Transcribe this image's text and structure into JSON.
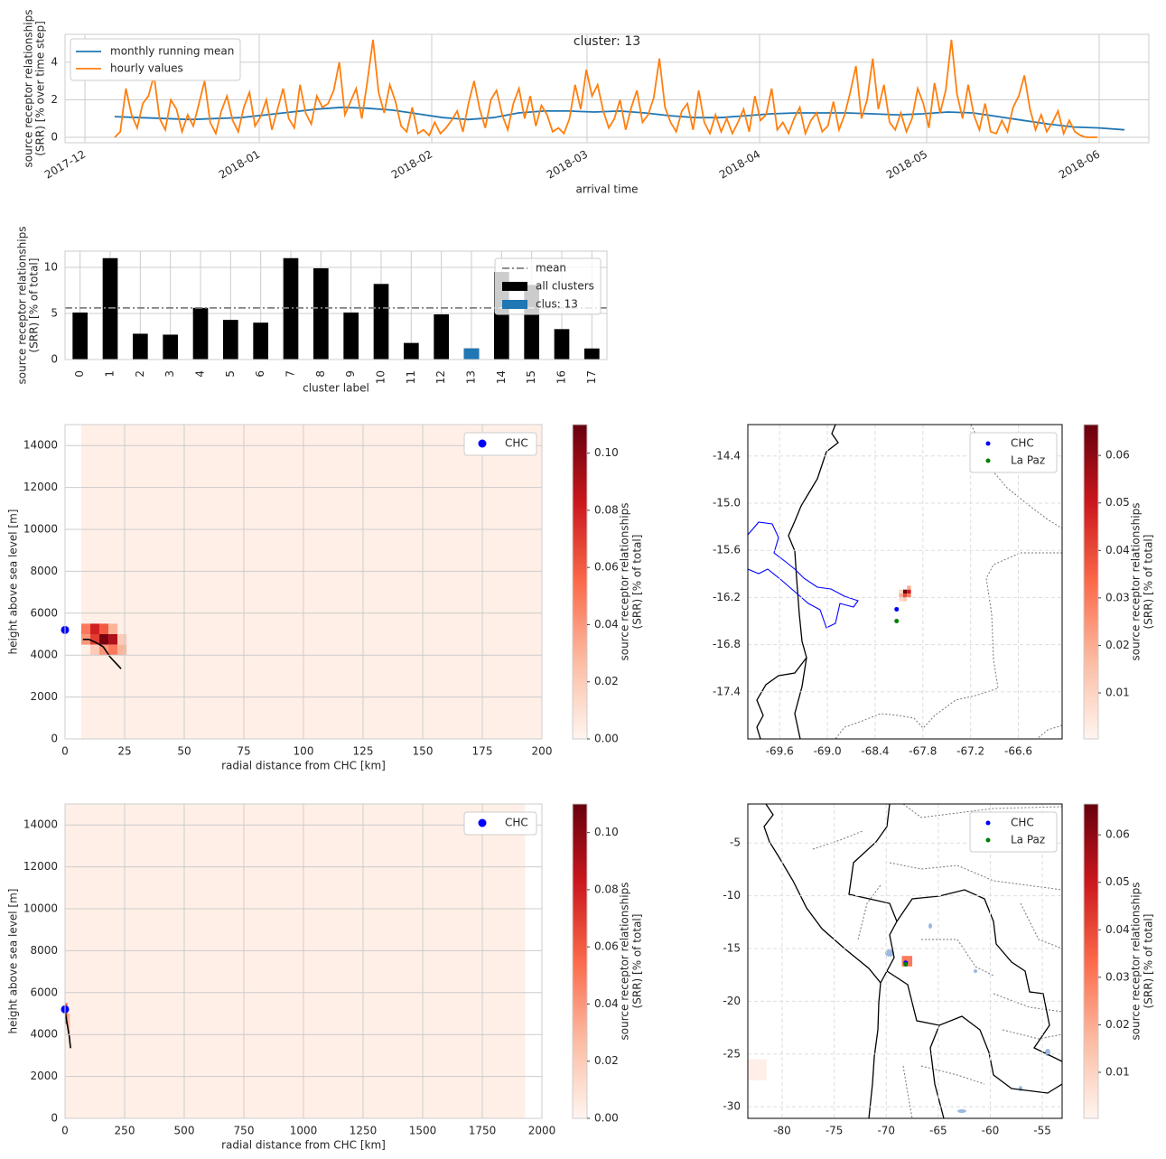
{
  "chart_data": [
    {
      "type": "line",
      "title": "cluster: 13",
      "xlabel": "arrival time",
      "ylabel": [
        "source receptor relationships",
        "(SRR) [% over time step]"
      ],
      "xticks": [
        "2017-12",
        "2018-01",
        "2018-02",
        "2018-03",
        "2018-04",
        "2018-05",
        "2018-06"
      ],
      "ylim": [
        -0.29,
        5.49
      ],
      "yticks": [
        0,
        2,
        4
      ],
      "grid": true,
      "legend": "upper left",
      "series": [
        {
          "name": "monthly running mean",
          "color": "#1f77b4",
          "values": [
            1.1,
            1.05,
            1.0,
            0.95,
            1.0,
            1.05,
            1.2,
            1.35,
            1.5,
            1.6,
            1.55,
            1.45,
            1.25,
            1.05,
            0.95,
            1.05,
            1.3,
            1.4,
            1.4,
            1.35,
            1.4,
            1.3,
            1.15,
            1.05,
            1.05,
            1.15,
            1.25,
            1.3,
            1.3,
            1.3,
            1.25,
            1.2,
            1.25,
            1.35,
            1.3,
            1.1,
            0.9,
            0.7,
            0.55,
            0.5,
            0.4
          ]
        },
        {
          "name": "hourly values",
          "color": "#ff7f0e",
          "values": [
            0,
            0.3,
            2.6,
            1.2,
            0.5,
            1.8,
            2.2,
            3.3,
            1.0,
            0.4,
            2.0,
            1.5,
            0.3,
            1.2,
            0.6,
            1.8,
            3.0,
            0.8,
            0.2,
            1.4,
            2.2,
            0.9,
            0.3,
            1.6,
            2.4,
            0.6,
            1.1,
            2.0,
            0.4,
            1.5,
            2.6,
            1.0,
            0.5,
            2.8,
            1.3,
            0.7,
            2.2,
            1.6,
            1.8,
            2.5,
            4.0,
            1.2,
            1.9,
            2.6,
            1.0,
            3.0,
            5.2,
            2.4,
            1.3,
            2.8,
            1.9,
            0.6,
            0.3,
            1.6,
            0.2,
            0.4,
            0.1,
            0.8,
            0.2,
            0.5,
            0.9,
            1.4,
            0.3,
            1.8,
            3.0,
            1.5,
            0.5,
            2.0,
            2.5,
            1.2,
            0.4,
            1.8,
            2.6,
            1.0,
            2.2,
            0.6,
            1.7,
            1.2,
            0.3,
            0.5,
            0.2,
            1.0,
            2.8,
            1.5,
            3.6,
            2.2,
            2.8,
            1.4,
            0.5,
            1.0,
            2.0,
            0.4,
            1.6,
            2.5,
            0.8,
            1.2,
            2.1,
            4.2,
            1.6,
            0.8,
            0.3,
            1.4,
            1.8,
            0.4,
            2.5,
            0.8,
            0.2,
            1.2,
            0.3,
            1.0,
            0.2,
            0.8,
            1.5,
            0.3,
            2.2,
            0.9,
            1.2,
            2.6,
            0.4,
            0.8,
            0.2,
            1.0,
            1.6,
            0.2,
            0.9,
            1.3,
            0.3,
            0.6,
            1.9,
            0.4,
            1.2,
            2.4,
            3.8,
            1.0,
            2.0,
            4.2,
            1.5,
            2.8,
            0.8,
            0.4,
            1.3,
            0.3,
            1.0,
            2.6,
            1.8,
            0.5,
            2.9,
            1.3,
            2.5,
            5.2,
            2.3,
            1.0,
            2.8,
            1.2,
            0.4,
            1.8,
            0.3,
            0.2,
            0.9,
            0.3,
            1.6,
            2.2,
            3.3,
            1.5,
            0.4,
            1.2,
            0.3,
            0.8,
            1.4,
            0.2,
            0.9,
            0.3,
            0.1,
            0,
            0,
            0
          ]
        }
      ]
    },
    {
      "type": "bar",
      "xlabel": "cluster label",
      "ylabel": [
        "source receptor relationships",
        "(SRR) [% of total]"
      ],
      "categories": [
        "0",
        "1",
        "2",
        "3",
        "4",
        "5",
        "6",
        "7",
        "8",
        "9",
        "10",
        "11",
        "12",
        "13",
        "14",
        "15",
        "16",
        "17"
      ],
      "ylim": [
        0,
        11.76
      ],
      "yticks": [
        0,
        5,
        10
      ],
      "grid": true,
      "legend": "upper right",
      "mean": {
        "name": "mean",
        "color": "#808080",
        "value": 5.6
      },
      "series": [
        {
          "name": "all clusters",
          "color": "#000000",
          "values": [
            5.1,
            11.0,
            2.8,
            2.7,
            5.6,
            4.3,
            4.0,
            11.0,
            9.9,
            5.1,
            8.2,
            1.8,
            4.9,
            1.2,
            9.5,
            8.1,
            3.3,
            1.2
          ]
        },
        {
          "name": "clus: 13",
          "color": "#1f77b4",
          "values": [
            null,
            null,
            null,
            null,
            null,
            null,
            null,
            null,
            null,
            null,
            null,
            null,
            null,
            1.2,
            null,
            null,
            null,
            null
          ]
        }
      ]
    },
    {
      "type": "heatmap",
      "xlabel": "radial distance from CHC [km]",
      "ylabel": [
        "height above sea level [m]"
      ],
      "xlim": [
        0,
        200
      ],
      "xticks": [
        0,
        25,
        50,
        75,
        100,
        125,
        150,
        175,
        200
      ],
      "ylim": [
        0,
        15000
      ],
      "yticks": [
        0,
        2000,
        4000,
        6000,
        8000,
        10000,
        12000,
        14000
      ],
      "grid": true,
      "legend": "upper right",
      "cells": [
        {
          "x": [
            6.8,
            200
          ],
          "y": [
            0,
            15000
          ],
          "value": 0.003
        },
        {
          "x": [
            6.8,
            10.6
          ],
          "y": [
            5000,
            5500
          ],
          "value": 0.05
        },
        {
          "x": [
            10.6,
            14.4
          ],
          "y": [
            5000,
            5500
          ],
          "value": 0.08
        },
        {
          "x": [
            14.4,
            18.2
          ],
          "y": [
            5000,
            5500
          ],
          "value": 0.06
        },
        {
          "x": [
            18.2,
            22
          ],
          "y": [
            5000,
            5500
          ],
          "value": 0.03
        },
        {
          "x": [
            6.8,
            10.6
          ],
          "y": [
            4500,
            5000
          ],
          "value": 0.04
        },
        {
          "x": [
            10.6,
            14.4
          ],
          "y": [
            4500,
            5000
          ],
          "value": 0.07
        },
        {
          "x": [
            14.4,
            18.2
          ],
          "y": [
            4500,
            5000
          ],
          "value": 0.105
        },
        {
          "x": [
            18.2,
            22
          ],
          "y": [
            4500,
            5000
          ],
          "value": 0.09
        },
        {
          "x": [
            22,
            25.8
          ],
          "y": [
            4500,
            5000
          ],
          "value": 0.02
        },
        {
          "x": [
            10.6,
            14.4
          ],
          "y": [
            4000,
            4500
          ],
          "value": 0.02
        },
        {
          "x": [
            14.4,
            18.2
          ],
          "y": [
            4000,
            4500
          ],
          "value": 0.04
        },
        {
          "x": [
            18.2,
            22
          ],
          "y": [
            4000,
            4500
          ],
          "value": 0.05
        },
        {
          "x": [
            22,
            25.8
          ],
          "y": [
            4000,
            4500
          ],
          "value": 0.03
        }
      ],
      "line": {
        "color": "#000000",
        "x": [
          7.5,
          10,
          13,
          16,
          19,
          23.5
        ],
        "y": [
          4750,
          4750,
          4600,
          4400,
          3900,
          3350
        ]
      },
      "points": [
        {
          "name": "CHC",
          "color": "#0000ff",
          "x": 0,
          "y": 5200
        }
      ],
      "colorbar": {
        "label": [
          "source receptor relationships",
          "(SRR) [% of total]"
        ],
        "lim": [
          0,
          0.11
        ],
        "ticks": [
          {
            "value": 0,
            "label": "0.00"
          },
          0.02,
          0.04,
          0.06,
          0.08,
          {
            "value": 0.1,
            "label": "0.10"
          }
        ]
      }
    },
    {
      "type": "map",
      "xlim": [
        -70.0,
        -66.05
      ],
      "xticks": [
        -69.6,
        {
          "value": -69,
          "label": "-69.0"
        },
        -68.4,
        -67.8,
        -67.2,
        -66.6
      ],
      "ylim": [
        -18.0,
        -14.0
      ],
      "yticks": [
        -14.4,
        {
          "value": -15,
          "label": "-15.0"
        },
        -15.6,
        -16.2,
        -16.8,
        -17.4
      ],
      "grid": true,
      "legend": "upper right",
      "cells": [
        {
          "x": [
            -68.1,
            -68.05
          ],
          "y": [
            -16.2,
            -16.15
          ],
          "value": 0.02
        },
        {
          "x": [
            -68.05,
            -68.0
          ],
          "y": [
            -16.2,
            -16.15
          ],
          "value": 0.04
        },
        {
          "x": [
            -68.0,
            -67.95
          ],
          "y": [
            -16.2,
            -16.15
          ],
          "value": 0.03
        },
        {
          "x": [
            -68.05,
            -68.0
          ],
          "y": [
            -16.15,
            -16.1
          ],
          "value": 0.066
        },
        {
          "x": [
            -68.0,
            -67.95
          ],
          "y": [
            -16.15,
            -16.1
          ],
          "value": 0.05
        },
        {
          "x": [
            -68.1,
            -68.05
          ],
          "y": [
            -16.15,
            -16.1
          ],
          "value": 0.01
        },
        {
          "x": [
            -68.1,
            -68.05
          ],
          "y": [
            -16.25,
            -16.2
          ],
          "value": 0.008
        },
        {
          "x": [
            -68.05,
            -68.0
          ],
          "y": [
            -16.25,
            -16.2
          ],
          "value": 0.012
        },
        {
          "x": [
            -68.0,
            -67.95
          ],
          "y": [
            -16.1,
            -16.05
          ],
          "value": 0.02
        }
      ],
      "points": [
        {
          "name": "CHC",
          "color": "#0000ff",
          "x": -68.13,
          "y": -16.35
        },
        {
          "name": "La Paz",
          "color": "#008000",
          "x": -68.13,
          "y": -16.5
        }
      ],
      "colorbar": {
        "label": [
          "source receptor relationships",
          "(SRR) [% of total]"
        ],
        "lim": [
          0.0003,
          0.0665
        ],
        "ticks": [
          0.01,
          0.02,
          0.03,
          0.04,
          0.05,
          0.06
        ]
      }
    },
    {
      "type": "heatmap",
      "xlabel": "radial distance from CHC [km]",
      "ylabel": [
        "height above sea level [m]"
      ],
      "xlim": [
        0,
        2000
      ],
      "xticks": [
        0,
        250,
        500,
        750,
        1000,
        1250,
        1500,
        1750,
        2000
      ],
      "ylim": [
        0,
        15000
      ],
      "yticks": [
        0,
        2000,
        4000,
        6000,
        8000,
        10000,
        12000,
        14000
      ],
      "grid": true,
      "legend": "upper right",
      "cells": [
        {
          "x": [
            0,
            1930
          ],
          "y": [
            0,
            15000
          ],
          "value": 0.003
        },
        {
          "x": [
            0,
            10
          ],
          "y": [
            4500,
            5500
          ],
          "value": 0.06
        },
        {
          "x": [
            10,
            20
          ],
          "y": [
            4000,
            5000
          ],
          "value": 0.03
        }
      ],
      "line": {
        "color": "#000000",
        "x": [
          2,
          6,
          12,
          18,
          23
        ],
        "y": [
          5000,
          4700,
          4300,
          3900,
          3350
        ]
      },
      "points": [
        {
          "name": "CHC",
          "color": "#0000ff",
          "x": 0,
          "y": 5200
        }
      ],
      "colorbar": {
        "label": [
          "source receptor relationships",
          "(SRR) [% of total]"
        ],
        "lim": [
          0,
          0.11
        ],
        "ticks": [
          {
            "value": 0,
            "label": "0.00"
          },
          0.02,
          0.04,
          0.06,
          0.08,
          {
            "value": 0.1,
            "label": "0.10"
          }
        ]
      }
    },
    {
      "type": "map",
      "xlim": [
        -83.3,
        -53.1
      ],
      "xticks": [
        -80,
        -75,
        -70,
        -65,
        -60,
        -55
      ],
      "ylim": [
        -31.1,
        -1.3
      ],
      "yticks": [
        -5,
        -10,
        -15,
        -20,
        -25,
        -30
      ],
      "grid": true,
      "legend": "upper right",
      "cells": [
        {
          "x": [
            -68.5,
            -67.5
          ],
          "y": [
            -16.7,
            -15.7
          ],
          "value": 0.03
        },
        {
          "x": [
            -83.3,
            -81.5
          ],
          "y": [
            -27.5,
            -25.5
          ],
          "value": 0.002
        }
      ],
      "points": [
        {
          "name": "CHC",
          "color": "#0000ff",
          "x": -68.13,
          "y": -16.35
        },
        {
          "name": "La Paz",
          "color": "#008000",
          "x": -68.13,
          "y": -16.5
        }
      ],
      "colorbar": {
        "label": [
          "source receptor relationships",
          "(SRR) [% of total]"
        ],
        "lim": [
          0.0003,
          0.0665
        ],
        "ticks": [
          0.01,
          0.02,
          0.03,
          0.04,
          0.05,
          0.06
        ]
      }
    }
  ]
}
